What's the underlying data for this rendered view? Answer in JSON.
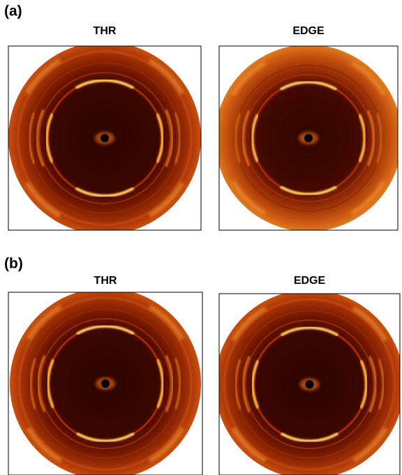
{
  "panels": [
    {
      "label": "(a)",
      "images": [
        {
          "title": "THR"
        },
        {
          "title": "EDGE"
        }
      ]
    },
    {
      "label": "(b)",
      "images": [
        {
          "title": "THR"
        },
        {
          "title": "EDGE"
        }
      ]
    }
  ]
}
